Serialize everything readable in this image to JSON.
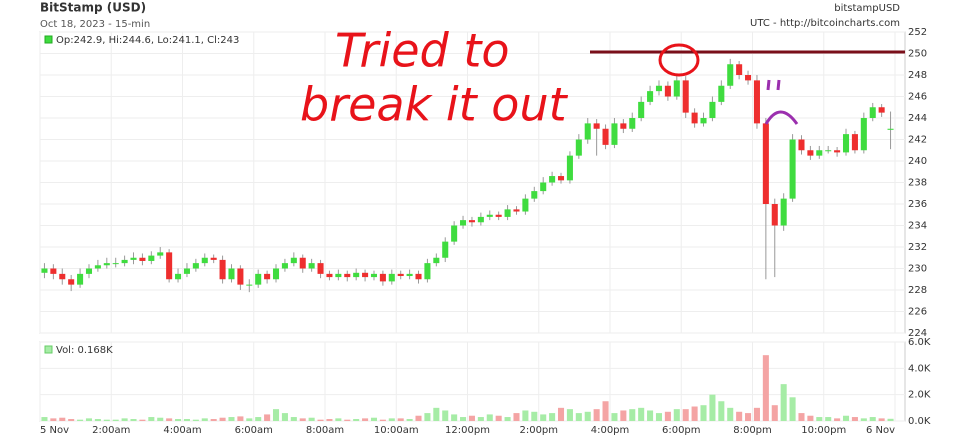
{
  "chart_data": [
    {
      "type": "candlestick",
      "title": "BitStamp (USD)",
      "subtitle": "Oct 18, 2023 - 15-min",
      "symbol": "bitstampUSD",
      "source": "UTC - http://bitcoincharts.com",
      "legend_text": "Op:242.9, Hi:244.6, Lo:241.1, Cl:243",
      "annotations": [
        "Tried to",
        "break it out"
      ],
      "up_color": "#3fdc3f",
      "down_color": "#ee2e2e",
      "x": [
        0,
        0.25,
        0.5,
        0.75,
        1,
        1.25,
        1.5,
        1.75,
        2,
        2.25,
        2.5,
        2.75,
        3,
        3.25,
        3.5,
        3.75,
        4,
        4.25,
        4.5,
        4.75,
        5,
        5.25,
        5.5,
        5.75,
        6,
        6.25,
        6.5,
        6.75,
        7,
        7.25,
        7.5,
        7.75,
        8,
        8.25,
        8.5,
        8.75,
        9,
        9.25,
        9.5,
        9.75,
        10,
        10.25,
        10.5,
        10.75,
        11,
        11.25,
        11.5,
        11.75,
        12,
        12.25,
        12.5,
        12.75,
        13,
        13.25,
        13.5,
        13.75,
        14,
        14.25,
        14.5,
        14.75,
        15,
        15.25,
        15.5,
        15.75,
        16,
        16.25,
        16.5,
        16.75,
        17,
        17.25,
        17.5,
        17.75,
        18,
        18.25,
        18.5,
        18.75,
        19,
        19.25,
        19.5,
        19.75,
        20,
        20.25,
        20.5,
        20.75,
        21,
        21.25,
        21.5,
        21.75,
        22,
        22.25,
        22.5,
        22.75,
        23,
        23.25,
        23.5,
        23.75
      ],
      "open": [
        229.6,
        230,
        229.5,
        229,
        228.5,
        229.5,
        230,
        230.3,
        230.5,
        230.5,
        230.8,
        231,
        230.7,
        231.2,
        231.5,
        229,
        229.5,
        230,
        230.5,
        231,
        230.8,
        229,
        230,
        228.5,
        228.5,
        229.5,
        229,
        230,
        230.5,
        231,
        230,
        230.5,
        229.5,
        229.2,
        229.5,
        229.2,
        229.6,
        229.2,
        229.5,
        228.8,
        229.5,
        229.3,
        229.5,
        229,
        230.5,
        231,
        232.5,
        234,
        234.5,
        234.3,
        234.8,
        235,
        234.8,
        235.5,
        235.3,
        236.5,
        237.2,
        238,
        238.6,
        238.2,
        240.5,
        242,
        243.5,
        243,
        241.5,
        243.5,
        243,
        244,
        245.5,
        246.5,
        247,
        246,
        247.5,
        244.5,
        243.5,
        244,
        245.5,
        247,
        249,
        248,
        247.5,
        243.5,
        236,
        234,
        236.5,
        242,
        241,
        240.5,
        241,
        241,
        240.8,
        242.5,
        241,
        244,
        245,
        242.9
      ],
      "high": [
        230.5,
        230.4,
        230,
        229.4,
        230,
        230.4,
        230.8,
        231,
        231,
        231.2,
        231.5,
        231.4,
        231.6,
        232,
        231.8,
        230,
        230.5,
        230.9,
        231.4,
        231.3,
        231.2,
        230.4,
        230.3,
        229,
        229.9,
        229.8,
        230.4,
        230.9,
        231.5,
        231.3,
        230.9,
        230.8,
        229.8,
        229.9,
        229.8,
        230,
        229.9,
        229.8,
        229.8,
        229.9,
        229.8,
        229.9,
        229.8,
        230.9,
        231.4,
        232.9,
        234.4,
        234.9,
        234.8,
        235.2,
        235.4,
        235.3,
        235.9,
        235.8,
        236.9,
        237.6,
        238.5,
        239,
        238.9,
        240.9,
        242.5,
        244,
        243.9,
        243.4,
        244,
        243.9,
        244.5,
        246,
        247,
        247.5,
        247.4,
        248,
        247.9,
        244.9,
        244.5,
        246,
        247.5,
        249.5,
        249.3,
        248.4,
        248,
        244,
        236.5,
        237,
        242.5,
        242.4,
        241.4,
        241.4,
        241.4,
        241.3,
        243,
        242.8,
        244.5,
        245.4,
        245.3,
        244.6
      ],
      "low": [
        229.1,
        229,
        228.5,
        227.9,
        228.2,
        229.1,
        229.7,
        230,
        230.1,
        230.2,
        230.4,
        230.3,
        230.4,
        230.9,
        228.7,
        228.7,
        229.2,
        229.7,
        230.2,
        230.5,
        228.6,
        228.7,
        228,
        227.8,
        228.2,
        228.6,
        228.7,
        229.7,
        230.2,
        229.6,
        229.7,
        229.1,
        228.9,
        228.9,
        228.8,
        228.9,
        228.8,
        228.9,
        228.4,
        228.5,
        229,
        229,
        228.6,
        228.7,
        230.2,
        230.6,
        232.2,
        233.7,
        233.9,
        234,
        234.5,
        234.5,
        234.5,
        235,
        235,
        236.2,
        236.9,
        237.7,
        237.9,
        237.9,
        240.2,
        241.6,
        240.5,
        241.1,
        241.2,
        242.6,
        242.7,
        243.7,
        245.2,
        246.1,
        245.6,
        245.7,
        244,
        243.1,
        243.2,
        243.7,
        245.2,
        246.7,
        247.6,
        247.1,
        243,
        229,
        229.2,
        233.5,
        236.2,
        240.6,
        240.1,
        240.2,
        240.7,
        240.4,
        240.5,
        240.7,
        240.7,
        243.7,
        244.1,
        241.1
      ],
      "close": [
        230,
        229.5,
        229,
        228.5,
        229.5,
        230,
        230.3,
        230.5,
        230.5,
        230.8,
        231,
        230.7,
        231.2,
        231.5,
        229,
        229.5,
        230,
        230.5,
        231,
        230.8,
        229,
        230,
        228.5,
        228.5,
        229.5,
        229,
        230,
        230.5,
        231,
        230,
        230.5,
        229.5,
        229.2,
        229.5,
        229.2,
        229.6,
        229.2,
        229.5,
        228.8,
        229.5,
        229.3,
        229.5,
        229,
        230.5,
        231,
        232.5,
        234,
        234.5,
        234.3,
        234.8,
        235,
        234.8,
        235.5,
        235.3,
        236.5,
        237.2,
        238,
        238.6,
        238.2,
        240.5,
        242,
        243.5,
        243,
        241.5,
        243.5,
        243,
        244,
        245.5,
        246.5,
        247,
        246,
        247.5,
        244.5,
        243.5,
        244,
        245.5,
        247,
        249,
        248,
        247.5,
        243.5,
        236,
        234,
        236.5,
        242,
        241,
        240.5,
        241,
        241,
        240.8,
        242.5,
        241,
        244,
        245,
        244.5,
        243
      ],
      "xlim": [
        0,
        24
      ],
      "xticks": [
        {
          "value": 0,
          "label": "5 Nov"
        },
        {
          "value": 2,
          "label": "2:00am"
        },
        {
          "value": 4,
          "label": "4:00am"
        },
        {
          "value": 6,
          "label": "6:00am"
        },
        {
          "value": 8,
          "label": "8:00am"
        },
        {
          "value": 10,
          "label": "10:00am"
        },
        {
          "value": 12,
          "label": "12:00pm"
        },
        {
          "value": 14,
          "label": "2:00pm"
        },
        {
          "value": 16,
          "label": "4:00pm"
        },
        {
          "value": 18,
          "label": "6:00pm"
        },
        {
          "value": 20,
          "label": "8:00pm"
        },
        {
          "value": 22,
          "label": "10:00pm"
        },
        {
          "value": 24,
          "label": "6 Nov"
        }
      ],
      "ylim": [
        224,
        252
      ],
      "yticks": [
        224,
        226,
        228,
        230,
        232,
        234,
        236,
        238,
        240,
        242,
        244,
        246,
        248,
        250,
        252
      ],
      "grid": true
    },
    {
      "type": "bar",
      "legend_text": "Vol: 0.168K",
      "up_color": "#a6eca6",
      "down_color": "#f4a4a4",
      "values": [
        0.3,
        0.2,
        0.25,
        0.15,
        0.1,
        0.2,
        0.15,
        0.1,
        0.1,
        0.2,
        0.15,
        0.1,
        0.3,
        0.25,
        0.2,
        0.15,
        0.15,
        0.1,
        0.2,
        0.15,
        0.25,
        0.3,
        0.35,
        0.2,
        0.3,
        0.5,
        0.9,
        0.6,
        0.3,
        0.2,
        0.25,
        0.1,
        0.15,
        0.2,
        0.1,
        0.15,
        0.2,
        0.25,
        0.1,
        0.2,
        0.2,
        0.15,
        0.4,
        0.6,
        1.0,
        0.8,
        0.5,
        0.3,
        0.4,
        0.3,
        0.5,
        0.4,
        0.3,
        0.6,
        0.8,
        0.7,
        0.5,
        0.6,
        1.0,
        0.9,
        0.6,
        0.7,
        0.9,
        1.5,
        0.6,
        0.8,
        0.9,
        1.0,
        0.8,
        0.6,
        0.7,
        0.9,
        0.9,
        1.1,
        1.2,
        2.0,
        1.5,
        1.0,
        0.7,
        0.6,
        1.0,
        5.0,
        1.2,
        2.8,
        1.8,
        0.6,
        0.4,
        0.3,
        0.3,
        0.2,
        0.4,
        0.3,
        0.2,
        0.3,
        0.2,
        0.168
      ],
      "ylim": [
        0,
        6
      ],
      "yticks": [
        {
          "value": 0,
          "label": "0.0K"
        },
        {
          "value": 2,
          "label": "2.0K"
        },
        {
          "value": 4,
          "label": "4.0K"
        },
        {
          "value": 6,
          "label": "6.0K"
        }
      ],
      "grid": true
    }
  ]
}
